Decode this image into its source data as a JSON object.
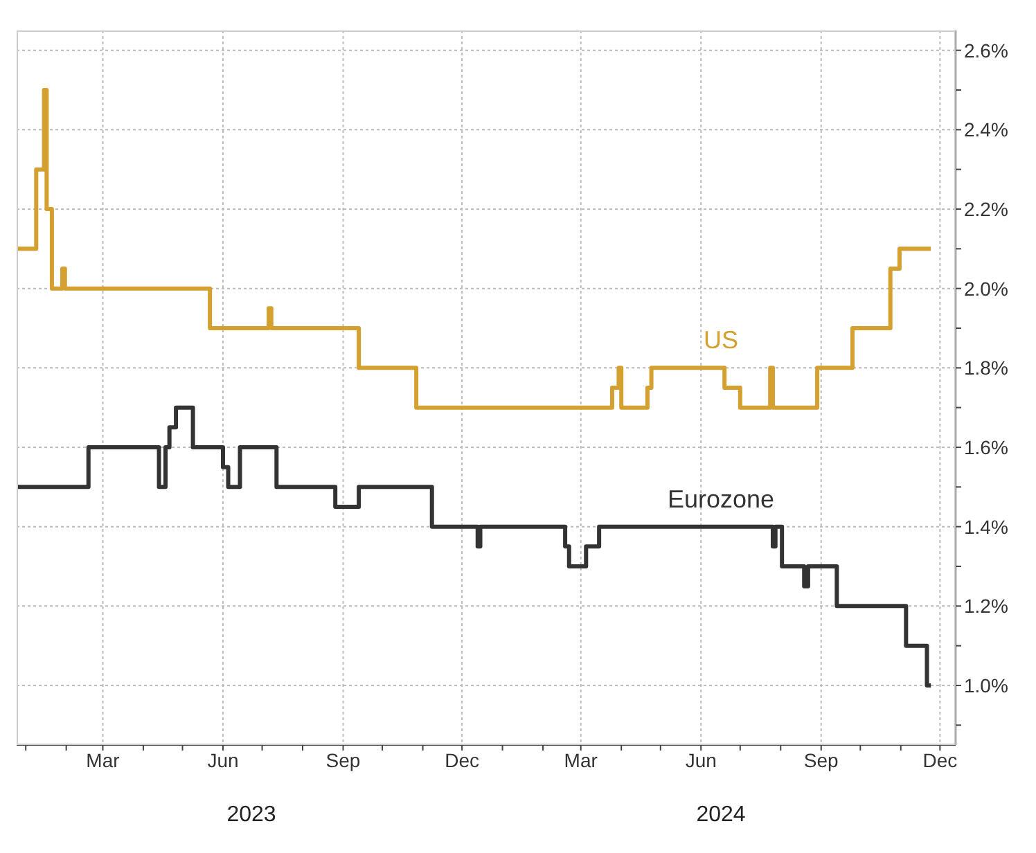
{
  "chart_data": {
    "type": "step",
    "xlim": [
      "2022-12-25",
      "2024-12-13"
    ],
    "xticks": [
      {
        "value": "2023-01-01",
        "label": null
      },
      {
        "value": "2023-02-01",
        "label": null
      },
      {
        "value": "2023-03-01",
        "label": "Mar"
      },
      {
        "value": "2023-04-01",
        "label": null
      },
      {
        "value": "2023-05-01",
        "label": null
      },
      {
        "value": "2023-06-01",
        "label": "Jun"
      },
      {
        "value": "2023-07-01",
        "label": null
      },
      {
        "value": "2023-08-01",
        "label": null
      },
      {
        "value": "2023-09-01",
        "label": "Sep"
      },
      {
        "value": "2023-10-01",
        "label": null
      },
      {
        "value": "2023-11-01",
        "label": null
      },
      {
        "value": "2023-12-01",
        "label": "Dec"
      },
      {
        "value": "2024-01-01",
        "label": null
      },
      {
        "value": "2024-02-01",
        "label": null
      },
      {
        "value": "2024-03-01",
        "label": "Mar"
      },
      {
        "value": "2024-04-01",
        "label": null
      },
      {
        "value": "2024-05-01",
        "label": null
      },
      {
        "value": "2024-06-01",
        "label": "Jun"
      },
      {
        "value": "2024-07-01",
        "label": null
      },
      {
        "value": "2024-08-01",
        "label": null
      },
      {
        "value": "2024-09-01",
        "label": "Sep"
      },
      {
        "value": "2024-10-01",
        "label": null
      },
      {
        "value": "2024-11-01",
        "label": null
      },
      {
        "value": "2024-12-01",
        "label": "Dec"
      }
    ],
    "ylim": [
      0.85,
      2.65
    ],
    "yticks": [
      {
        "value": 0.9,
        "label": null
      },
      {
        "value": 1.0,
        "label": "1.0%"
      },
      {
        "value": 1.1,
        "label": null
      },
      {
        "value": 1.2,
        "label": "1.2%"
      },
      {
        "value": 1.3,
        "label": null
      },
      {
        "value": 1.4,
        "label": "1.4%"
      },
      {
        "value": 1.5,
        "label": null
      },
      {
        "value": 1.6,
        "label": "1.6%"
      },
      {
        "value": 1.7,
        "label": null
      },
      {
        "value": 1.8,
        "label": "1.8%"
      },
      {
        "value": 1.9,
        "label": null
      },
      {
        "value": 2.0,
        "label": "2.0%"
      },
      {
        "value": 2.1,
        "label": null
      },
      {
        "value": 2.2,
        "label": "2.2%"
      },
      {
        "value": 2.3,
        "label": null
      },
      {
        "value": 2.4,
        "label": "2.4%"
      },
      {
        "value": 2.5,
        "label": null
      },
      {
        "value": 2.6,
        "label": "2.6%"
      }
    ],
    "grid": true,
    "annotations": [
      "2023",
      "2024"
    ],
    "series": [
      {
        "name": "US",
        "color": "#d4a030",
        "x": [
          "2022-12-26",
          "2023-01-09",
          "2023-01-15",
          "2023-01-17",
          "2023-01-21",
          "2023-01-29",
          "2023-01-31",
          "2023-05-22",
          "2023-07-06",
          "2023-07-08",
          "2023-09-13",
          "2023-10-27",
          "2024-03-25",
          "2024-03-30",
          "2024-04-01",
          "2024-04-21",
          "2024-04-24",
          "2024-06-19",
          "2024-07-01",
          "2024-07-24",
          "2024-07-26",
          "2024-08-29",
          "2024-09-25",
          "2024-10-24",
          "2024-10-31",
          "2024-11-24"
        ],
        "values": [
          2.1,
          2.3,
          2.5,
          2.2,
          2.0,
          2.05,
          2.0,
          1.9,
          1.95,
          1.9,
          1.8,
          1.7,
          1.75,
          1.8,
          1.7,
          1.75,
          1.8,
          1.75,
          1.7,
          1.8,
          1.7,
          1.8,
          1.9,
          2.05,
          2.1,
          2.1
        ]
      },
      {
        "name": "Eurozone",
        "color": "#333333",
        "x": [
          "2022-12-26",
          "2023-02-18",
          "2023-04-13",
          "2023-04-18",
          "2023-04-21",
          "2023-04-26",
          "2023-05-09",
          "2023-06-01",
          "2023-06-05",
          "2023-06-14",
          "2023-07-12",
          "2023-08-26",
          "2023-09-13",
          "2023-11-08",
          "2023-12-13",
          "2023-12-15",
          "2024-02-18",
          "2024-02-21",
          "2024-03-05",
          "2024-03-15",
          "2024-07-26",
          "2024-07-28",
          "2024-08-02",
          "2024-08-19",
          "2024-08-22",
          "2024-09-13",
          "2024-11-05",
          "2024-11-21",
          "2024-11-24"
        ],
        "values": [
          1.5,
          1.6,
          1.5,
          1.6,
          1.65,
          1.7,
          1.6,
          1.55,
          1.5,
          1.6,
          1.5,
          1.45,
          1.5,
          1.4,
          1.35,
          1.4,
          1.35,
          1.3,
          1.35,
          1.4,
          1.35,
          1.4,
          1.3,
          1.25,
          1.3,
          1.2,
          1.1,
          1.0,
          1.0
        ]
      }
    ]
  }
}
